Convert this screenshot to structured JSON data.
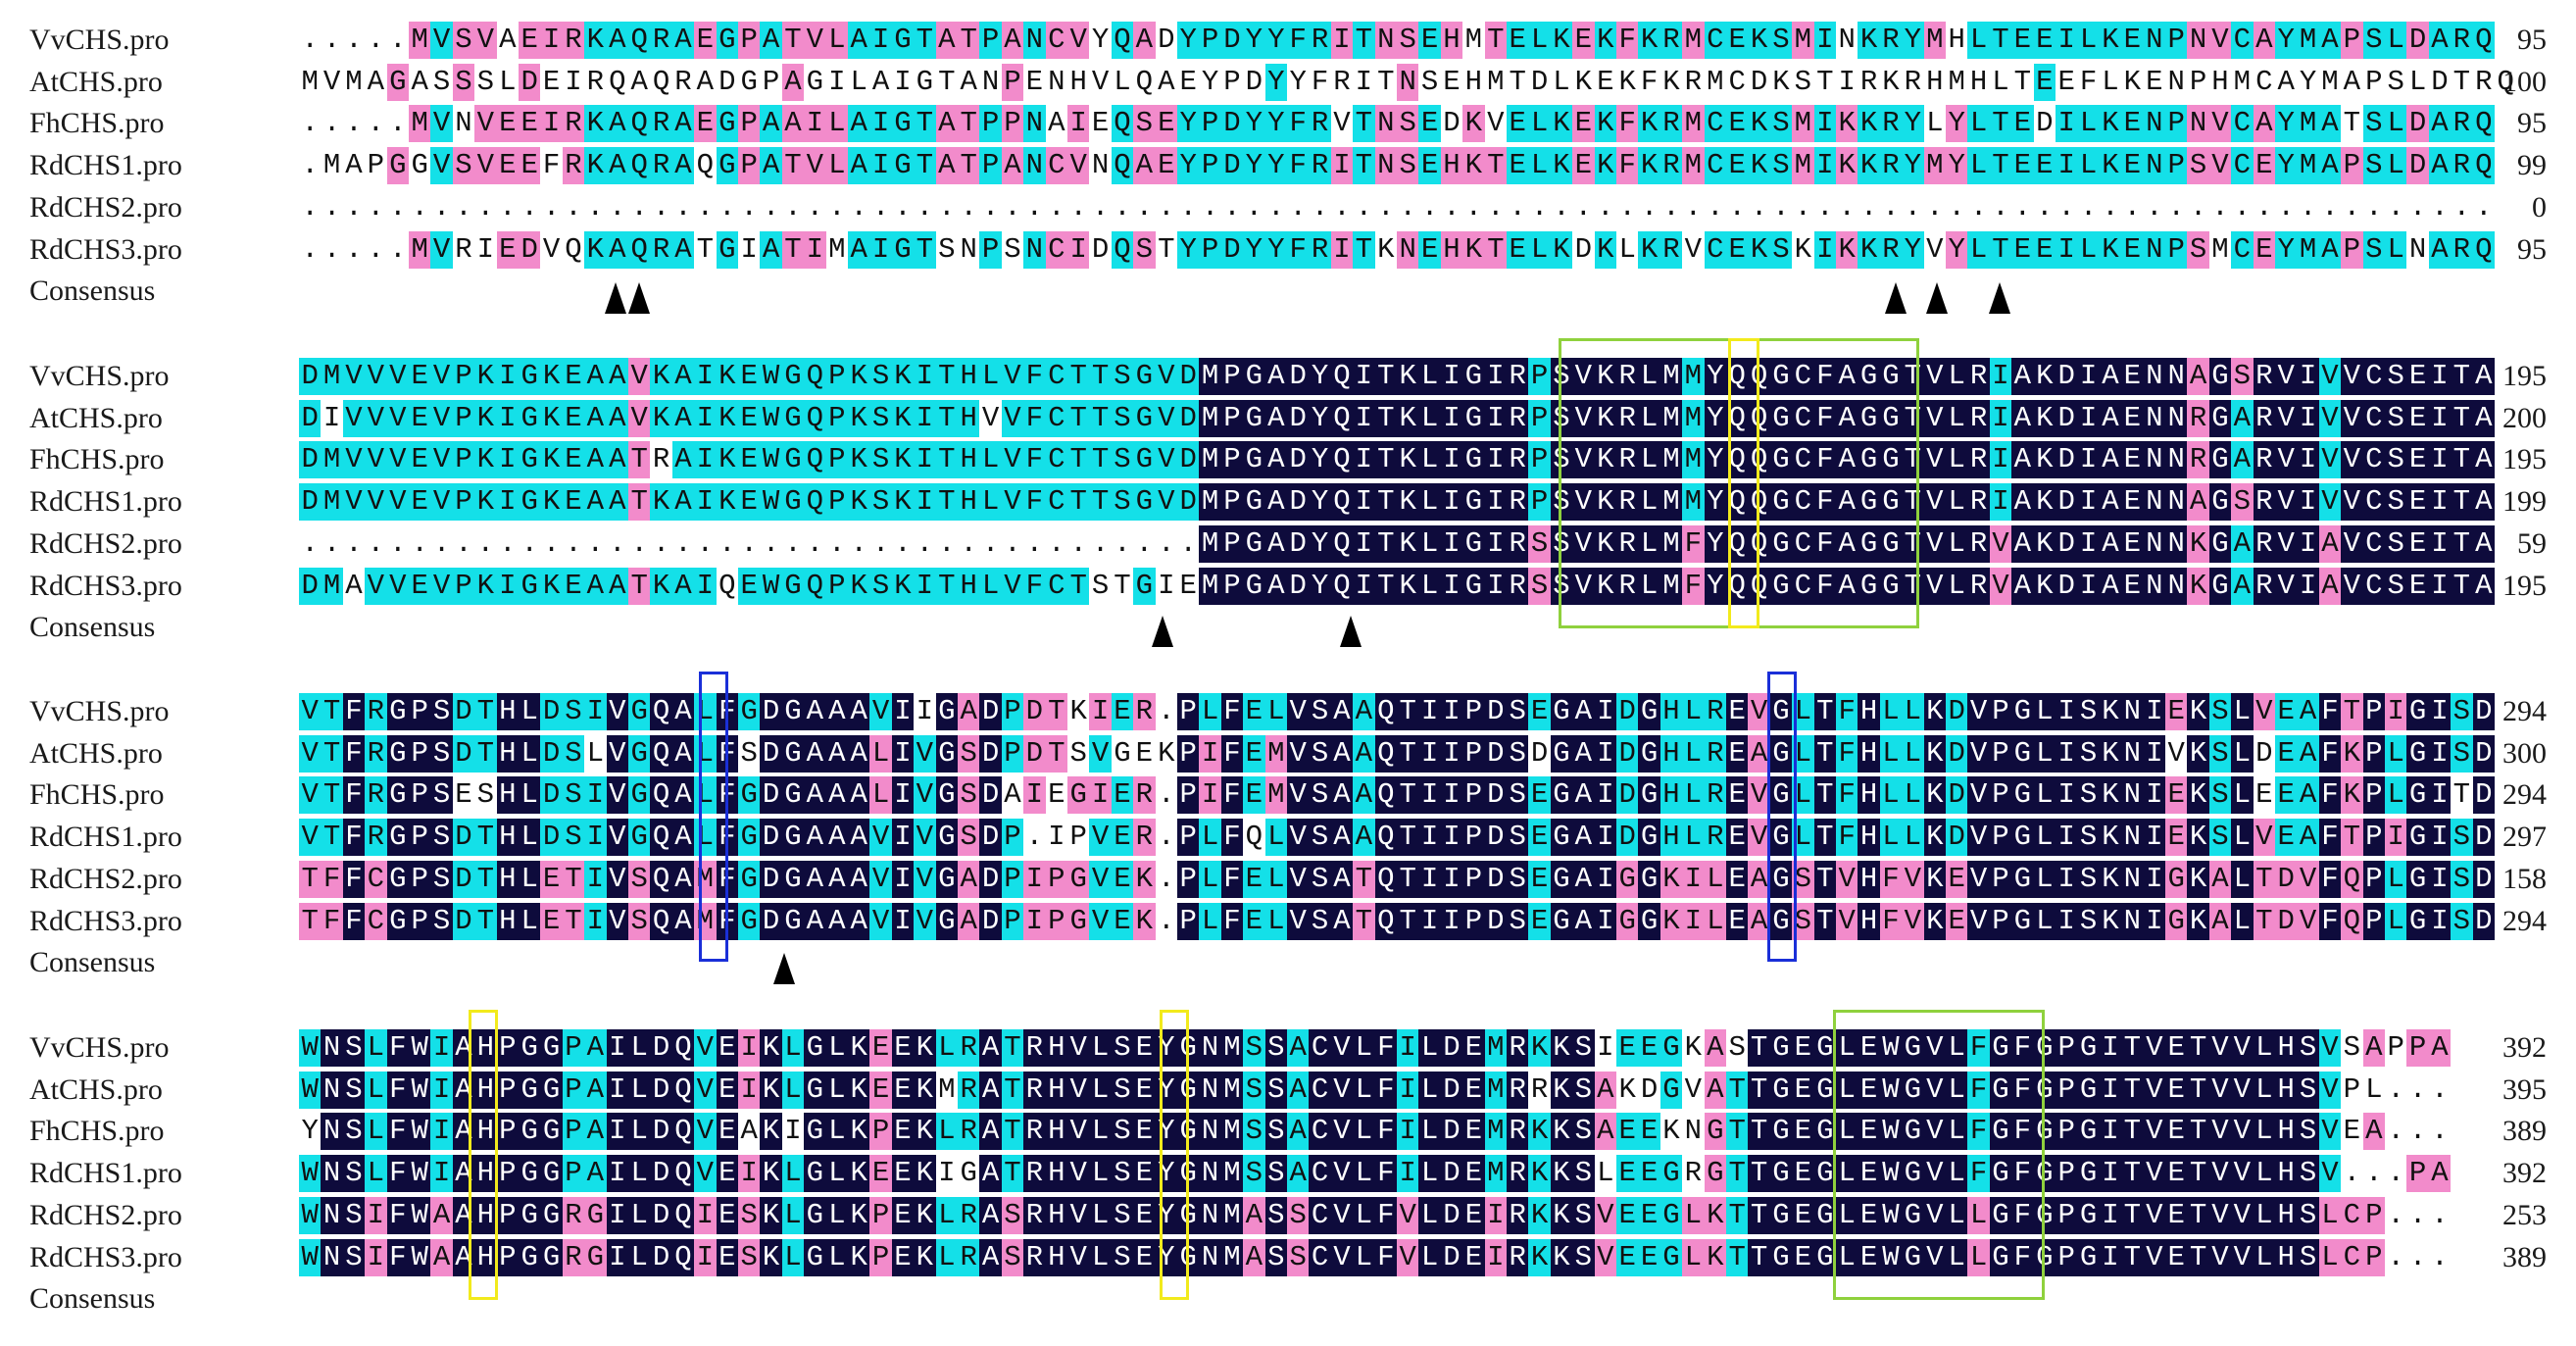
{
  "colors": {
    "identical": "#0e0b3c",
    "high": "#14e0e8",
    "medium": "#f28bcb",
    "box_green": "#8fd13d",
    "box_yellow": "#f2ea1c",
    "box_blue": "#1a2fd8"
  },
  "consensus_label": "Consensus",
  "blocks": [
    {
      "rows": [
        {
          "name": "VvCHS.pro",
          "seq": ".....MVSVAEIRKAQRAEGPATVLAIGTATPANCVYQADYPDYYFRITNSEHMTELKEKFKRMCEKSMINKRYMHLTEEILKENPNVCAYMAPSLDARQ",
          "end": "95"
        },
        {
          "name": "AtCHS.pro",
          "seq": "MVMAGASSSLDEIRQAQRADGPAGILAIGTANPENHVLQAEYPDYYFRITNSEHMTDLKEKFKRMCDKSTIRKRHMHLTEEFLKENPHMCAYMAPSLDTRQ",
          "end": "100"
        },
        {
          "name": "FhCHS.pro",
          "seq": ".....MVNVEEIRKAQRAEGPAAILAIGTATPPNAIEQSEYPDYYFRVTNSEDKVELKEKFKRMCEKSMIKKRYLYLTEDILKENPNVCAYMATSLDARQ",
          "end": "95"
        },
        {
          "name": "RdCHS1.pro",
          "seq": ".MAPGGVSVEEFRKAQRAQGPATVLAIGTATPANCVNQAEYPDYYFRITNSEHKTELKEKFKRMCEKSMIKKRYMYLTEEILKENPSVCEYMAPSLDARQ",
          "end": "99"
        },
        {
          "name": "RdCHS2.pro",
          "seq": "....................................................................................................",
          "end": "0"
        },
        {
          "name": "RdCHS3.pro",
          "seq": ".....MVRIEDVQKAQRATGIATIMAIGTSNPSNCIDQSTYPDYYFRITKNEHKTELKDKLKRVCEKSKIKKRYVYLTEEILKENPSMCEYMAPSLNARQ",
          "end": "95"
        }
      ]
    },
    {
      "rows": [
        {
          "name": "VvCHS.pro",
          "seq": "DMVVVEVPKIGKEAAVKAIKEWGQPKSKITHLVFCTTSGVDMPGADYQITKLIGIRPSVKRLMMYQQGCFAGGTVLRIAKDIAENNAGSRVIVVCSEITA",
          "end": "195"
        },
        {
          "name": "AtCHS.pro",
          "seq": "DIVVVEVPKIGKEAAVKAIKEWGQPKSKITHVVFCTTSGVDMPGADYQITKLIGIRPSVKRLMMYQQGCFAGGTVLRIAKDIAENNRGARVIVVCSEITA",
          "end": "200"
        },
        {
          "name": "FhCHS.pro",
          "seq": "DMVVVEVPKIGKEAATRAIKEWGQPKSKITHLVFCTTSGVDMPGADYQITKLIGIRPSVKRLMMYQQGCFAGGTVLRIAKDIAENNRGARVIVVCSEITA",
          "end": "195"
        },
        {
          "name": "RdCHS1.pro",
          "seq": "DMVVVEVPKIGKEAATKAIKEWGQPKSKITHLVFCTTSGVDMPGADYQITKLIGIRPSVKRLMMYQQGCFAGGTVLRIAKDIAENNAGSRVIVVCSEITA",
          "end": "199"
        },
        {
          "name": "RdCHS2.pro",
          "seq": ".........................................MPGADYQITKLIGIRSSVKRLMFYQQGCFAGGTVLRVAKDIAENNKGARVIAVCSEITA",
          "end": "59"
        },
        {
          "name": "RdCHS3.pro",
          "seq": "DMAVVEVPKIGKEAATKAIQEWGQPKSKITHLVFCTSTGIEMPGADYQITKLIGIRSSVKRLMFYQQGCFAGGTVLRVAKDIAENNKGARVIAVCSEITA",
          "end": "195"
        }
      ]
    },
    {
      "rows": [
        {
          "name": "VvCHS.pro",
          "seq": "VTFRGPSDTHLDSIVGQALFGDGAAAVIIGADPDTKIER.PLFELVSAAQTIIPDSEGAIDGHLREVGLTFHLLKDVPGLISKNIEKSLVEAFTPIGISD",
          "end": "294"
        },
        {
          "name": "AtCHS.pro",
          "seq": "VTFRGPSDTHLDSLVGQALFSDGAAALIVGSDPDTSVGEKPIFEMVSAAQTIIPDSDGAIDGHLREAGLTFHLLKDVPGLISKNIVKSLDEAFKPLGISD",
          "end": "300"
        },
        {
          "name": "FhCHS.pro",
          "seq": "VTFRGPSESHLDSIVGQALFGDGAAALIVGSDAIEGIER.PIFEMVSAAQTIIPDSEGAIDGHLREVGLTFHLLKDVPGLISKNIEKSLEEAFKPLGITD",
          "end": "294"
        },
        {
          "name": "RdCHS1.pro",
          "seq": "VTFRGPSDTHLDSIVGQALFGDGAAAVIVGSDP.IPVER.PLFQLVSAAQTIIPDSEGAIDGHLREVGLTFHLLKDVPGLISKNIEKSLVEAFTPIGISD",
          "end": "297"
        },
        {
          "name": "RdCHS2.pro",
          "seq": "TFFCGPSDTHLETIVSQAMFGDGAAAVIVGADPIPGVEK.PLFELVSATQTIIPDSEGAIGGKILEAGSTVHFVKEVPGLISKNIGKALTDVFQPLGISD",
          "end": "158"
        },
        {
          "name": "RdCHS3.pro",
          "seq": "TFFCGPSDTHLETIVSQAMFGDGAAAVIVGADPIPGVEK.PLFELVSATQTIIPDSEGAIGGKILEAGSTVHFVKEVPGLISKNIGKALTDVFQPLGISD",
          "end": "294"
        }
      ]
    },
    {
      "rows": [
        {
          "name": "VvCHS.pro",
          "seq": "WNSLFWIAHPGGPAILDQVEIKLGLKEEKLRATRHVLSEYGNMSSACVLFILDEMRKKSIEEGKASTGEGLEWGVLFGFGPGITVETVVLHSVSAPPA",
          "end": "392"
        },
        {
          "name": "AtCHS.pro",
          "seq": "WNSLFWIAHPGGPAILDQVEIKLGLKEEKMRATRHVLSEYGNMSSACVLFILDEMRRKSAKDGVATTGEGLEWGVLFGFGPGITVETVVLHSVPL...",
          "end": "395"
        },
        {
          "name": "FhCHS.pro",
          "seq": "YNSLFWIAHPGGPAILDQVEAKIGLKPEKLRATRHVLSEYGNMSSACVLFILDEMRKKSAEEKNGTTGEGLEWGVLFGFGPGITVETVVLHSVEA...",
          "end": "389"
        },
        {
          "name": "RdCHS1.pro",
          "seq": "WNSLFWIAHPGGPAILDQVEIKLGLKEEKIGATRHVLSEYGNMSSACVLFILDEMRKKSLEEGRGTTGEGLEWGVLFGFGPGITVETVVLHSV...PA",
          "end": "392"
        },
        {
          "name": "RdCHS2.pro",
          "seq": "WNSIFWAAHPGGRGILDQIESKLGLKPEKLRASRHVLSEYGNMASSCVLFVLDEIRKKSVEEGLKTTGEGLEWGVLLGFGPGITVETVVLHSLCP...",
          "end": "253"
        },
        {
          "name": "RdCHS3.pro",
          "seq": "WNSIFWAAHPGGRGILDQIESKLGLKPEKLRASRHVLSEYGNMASSCVLFVLDEIRKKSVEEGLKTTGEGLEWGVLLGFGPGITVETVVLHSLCP...",
          "end": "389"
        }
      ]
    }
  ]
}
